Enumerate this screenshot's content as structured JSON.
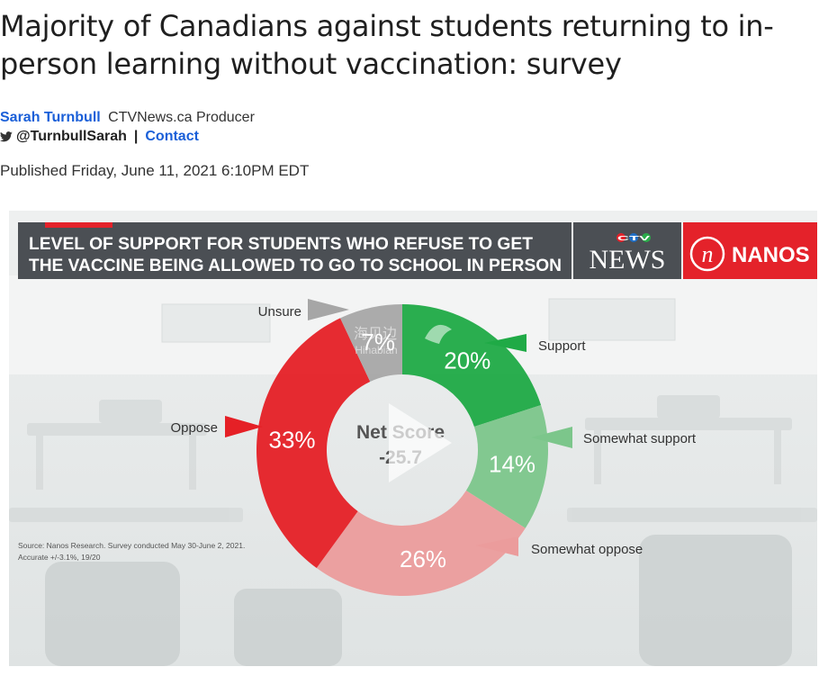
{
  "article": {
    "headline": "Majority of Canadians against students returning to in-person learning without vaccination: survey",
    "author": "Sarah Turnbull",
    "author_role": "CTVNews.ca Producer",
    "twitter_handle": "@TurnbullSarah",
    "separator": "|",
    "contact_label": "Contact",
    "published": "Published Friday, June 11, 2021 6:10PM EDT"
  },
  "graphic": {
    "banner_line1": "LEVEL OF SUPPORT FOR STUDENTS WHO REFUSE TO GET",
    "banner_line2": "THE VACCINE BEING ALLOWED TO GO TO SCHOOL IN PERSON",
    "ctv_letters": "CTV",
    "news_logo": "NEWS",
    "nanos_mark": "n",
    "nanos_logo": "NANOS",
    "center_label": "Net Score",
    "center_value": "-25.7",
    "source_line1": "Source: Nanos Research. Survey conducted May 30-June 2, 2021.",
    "source_line2": "Accurate +/-3.1%, 19/20",
    "watermark_cn": "海贝边",
    "watermark_en": "Hinabian",
    "colors": {
      "banner_bg": "#4b4f54",
      "banner_accent": "#e4222a",
      "nanos_red": "#e4222a"
    }
  },
  "chart_data": {
    "type": "pie",
    "variant": "donut",
    "categories": [
      "Support",
      "Somewhat support",
      "Somewhat oppose",
      "Oppose",
      "Unsure"
    ],
    "values": [
      20,
      14,
      26,
      33,
      7
    ],
    "value_labels": [
      "20%",
      "14%",
      "26%",
      "33%",
      "7%"
    ],
    "colors": [
      "#1faa46",
      "#7cc68b",
      "#eb9c9c",
      "#e52026",
      "#a6a6a6"
    ],
    "label_colors": [
      "#ffffff",
      "#ffffff",
      "#ffffff",
      "#ffffff",
      "#ffffff"
    ],
    "net_score": -25.7
  }
}
